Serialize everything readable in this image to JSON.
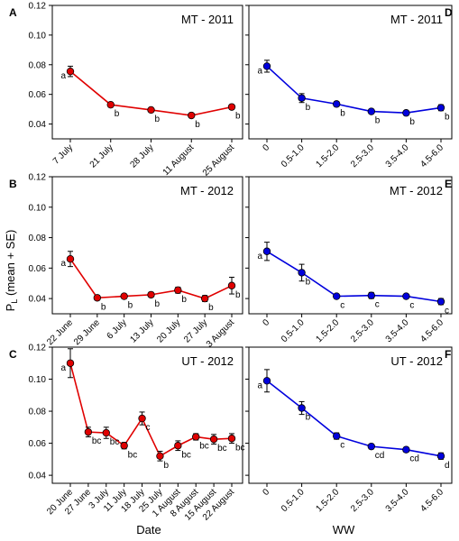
{
  "figure": {
    "ylabel_main": "P",
    "ylabel_sub": "L",
    "ylabel_rest": " (mean + SE)",
    "xlabel_left": "Date",
    "xlabel_right": "WW"
  },
  "chart_data": [
    {
      "panel": "A",
      "title": "MT - 2011",
      "type": "line",
      "color": "#e00000",
      "x": [
        "7 July",
        "21 July",
        "28 July",
        "11 August",
        "25 August"
      ],
      "y": [
        0.0755,
        0.053,
        0.0495,
        0.0458,
        0.0515
      ],
      "se": [
        0.0035,
        0.0015,
        0.0015,
        0.001,
        0.0015
      ],
      "letters": [
        "a",
        "b",
        "b",
        "b",
        "b"
      ],
      "ylim": [
        0.03,
        0.12
      ],
      "yticks": [
        "0.04",
        "0.06",
        "0.08",
        "0.10",
        "0.12"
      ]
    },
    {
      "panel": "D",
      "title": "MT - 2011",
      "type": "line",
      "color": "#0000dd",
      "x": [
        "0",
        "0.5-1.0",
        "1.5-2.0",
        "2.5-3.0",
        "3.5-4.0",
        "4.5-6.0"
      ],
      "y": [
        0.079,
        0.0575,
        0.0535,
        0.0485,
        0.0475,
        0.051
      ],
      "se": [
        0.004,
        0.003,
        0.0015,
        0.0015,
        0.001,
        0.002
      ],
      "letters": [
        "a",
        "b",
        "b",
        "b",
        "b",
        "b"
      ],
      "ylim": [
        0.03,
        0.12
      ]
    },
    {
      "panel": "B",
      "title": "MT - 2012",
      "type": "line",
      "color": "#e00000",
      "x": [
        "22 June",
        "29 June",
        "6 July",
        "13 July",
        "20 July",
        "27 July",
        "3 August"
      ],
      "y": [
        0.066,
        0.0405,
        0.0415,
        0.0425,
        0.0455,
        0.04,
        0.0485
      ],
      "se": [
        0.005,
        0.0015,
        0.0015,
        0.0015,
        0.002,
        0.002,
        0.0055
      ],
      "letters": [
        "a",
        "b",
        "b",
        "b",
        "b",
        "b",
        "b"
      ],
      "ylim": [
        0.03,
        0.12
      ],
      "yticks": [
        "0.04",
        "0.06",
        "0.08",
        "0.10",
        "0.12"
      ]
    },
    {
      "panel": "E",
      "title": "MT - 2012",
      "type": "line",
      "color": "#0000dd",
      "x": [
        "0",
        "0.5-1.0",
        "1.5-2.0",
        "2.5-3.0",
        "3.5-4.0",
        "4.5-6.0"
      ],
      "y": [
        0.071,
        0.057,
        0.0415,
        0.042,
        0.0415,
        0.038
      ],
      "se": [
        0.006,
        0.0055,
        0.001,
        0.002,
        0.001,
        0.002
      ],
      "letters": [
        "a",
        "b",
        "c",
        "c",
        "c",
        "c"
      ],
      "ylim": [
        0.03,
        0.12
      ]
    },
    {
      "panel": "C",
      "title": "UT - 2012",
      "type": "line",
      "color": "#e00000",
      "x": [
        "20 June",
        "27 June",
        "3 July",
        "11 July",
        "18 July",
        "25 July",
        "1 August",
        "8 August",
        "15 August",
        "22 August"
      ],
      "y": [
        0.11,
        0.067,
        0.0665,
        0.0585,
        0.0755,
        0.052,
        0.0585,
        0.064,
        0.0625,
        0.063
      ],
      "se": [
        0.009,
        0.003,
        0.0035,
        0.002,
        0.004,
        0.003,
        0.003,
        0.002,
        0.003,
        0.003
      ],
      "letters": [
        "a",
        "bc",
        "bc",
        "bc",
        "c",
        "b",
        "bc",
        "bc",
        "bc",
        "bc"
      ],
      "ylim": [
        0.035,
        0.12
      ],
      "yticks": [
        "0.04",
        "0.06",
        "0.08",
        "0.10",
        "0.12"
      ]
    },
    {
      "panel": "F",
      "title": "UT - 2012",
      "type": "line",
      "color": "#0000dd",
      "x": [
        "0",
        "0.5-1.0",
        "1.5-2.0",
        "2.5-3.0",
        "3.5-4.0",
        "4.5-6.0"
      ],
      "y": [
        0.099,
        0.082,
        0.0645,
        0.058,
        0.056,
        0.052
      ],
      "se": [
        0.007,
        0.004,
        0.002,
        0.0015,
        0.0015,
        0.002
      ],
      "letters": [
        "a",
        "b",
        "c",
        "cd",
        "cd",
        "d"
      ],
      "ylim": [
        0.035,
        0.12
      ]
    }
  ]
}
